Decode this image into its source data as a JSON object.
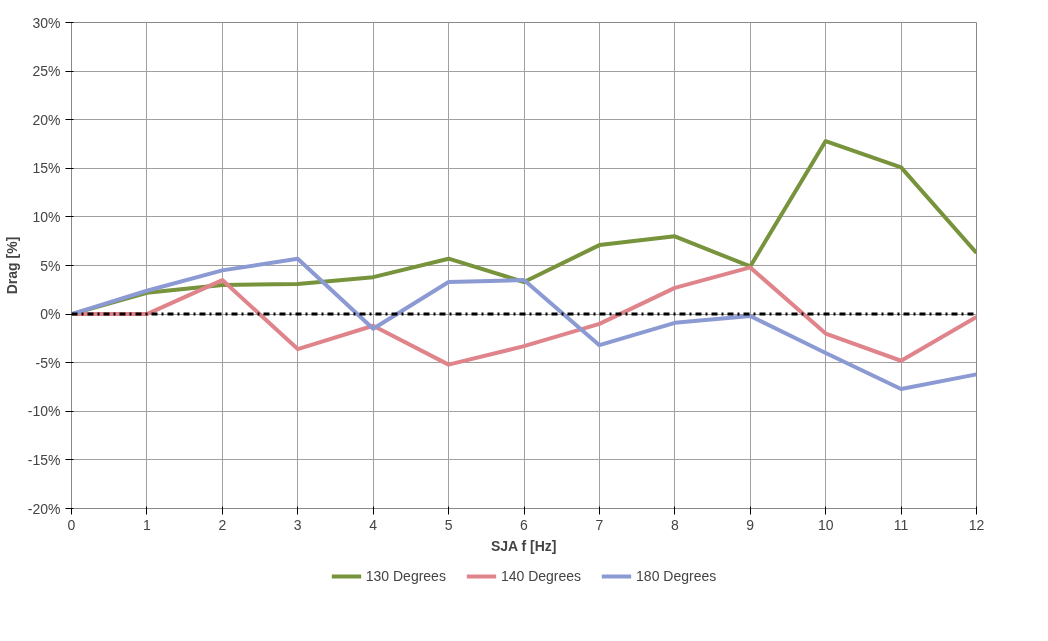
{
  "chart_data": {
    "type": "line",
    "xlabel": "SJA f [Hz]",
    "ylabel": "Drag [%]",
    "x": [
      0,
      1,
      2,
      3,
      4,
      5,
      6,
      7,
      8,
      9,
      10,
      11,
      12
    ],
    "xlim": [
      0,
      12
    ],
    "xticks": [
      0,
      1,
      2,
      3,
      4,
      5,
      6,
      7,
      8,
      9,
      10,
      11,
      12
    ],
    "ylim": [
      -20,
      30
    ],
    "yticks": [
      {
        "value": -20,
        "label": "-20%"
      },
      {
        "value": -15,
        "label": "-15%"
      },
      {
        "value": -10,
        "label": "-10%"
      },
      {
        "value": -5,
        "label": "-5%"
      },
      {
        "value": 0,
        "label": "0%"
      },
      {
        "value": 5,
        "label": "5%"
      },
      {
        "value": 10,
        "label": "10%"
      },
      {
        "value": 15,
        "label": "15%"
      },
      {
        "value": 20,
        "label": "20%"
      },
      {
        "value": 25,
        "label": "25%"
      },
      {
        "value": 30,
        "label": "30%"
      }
    ],
    "series": [
      {
        "name": "130 Degrees",
        "color": "#77933c",
        "values": [
          0,
          2.2,
          3.0,
          3.1,
          3.8,
          5.7,
          3.3,
          7.1,
          8.0,
          4.9,
          17.8,
          15.1,
          6.3
        ]
      },
      {
        "name": "140 Degrees",
        "color": "#e0848c",
        "values": [
          0,
          0,
          3.5,
          -3.6,
          -1.2,
          -5.2,
          -3.3,
          -1.0,
          2.7,
          4.8,
          -2.0,
          -4.8,
          -0.3
        ]
      },
      {
        "name": "180 Degrees",
        "color": "#8c9ad4",
        "values": [
          0,
          2.4,
          4.5,
          5.7,
          -1.5,
          3.3,
          3.5,
          -3.2,
          -0.9,
          -0.2,
          -4.0,
          -7.7,
          -6.2
        ]
      }
    ],
    "ref_lines": [
      {
        "axis": "y",
        "value": 0,
        "color": "#000000",
        "line_style": "dashdot"
      }
    ],
    "grid": true,
    "legend": "bottom",
    "marker": "none",
    "line_style": "solid"
  }
}
